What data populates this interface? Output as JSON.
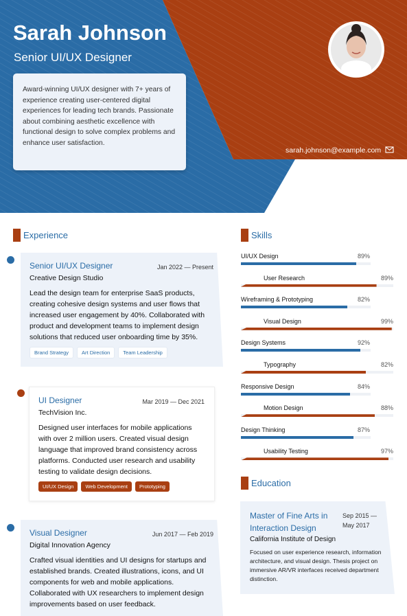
{
  "header": {
    "name": "Sarah Johnson",
    "title": "Senior UI/UX Designer",
    "summary": "Award-winning UI/UX designer with 7+ years of experience creating user-centered digital experiences for leading tech brands. Passionate about combining aesthetic excellence with functional design to solve complex problems and enhance user satisfaction.",
    "email": "sarah.johnson@example.com"
  },
  "experience": {
    "heading": "Experience",
    "items": [
      {
        "role": "Senior UI/UX Designer",
        "dates": "Jan 2022 — Present",
        "company": "Creative Design Studio",
        "description": "Lead the design team for enterprise SaaS products, creating cohesive design systems and user flows that increased user engagement by 40%. Collaborated with product and development teams to implement design solutions that reduced user onboarding time by 35%.",
        "tags": [
          "Brand Strategy",
          "Art Direction",
          "Team Leadership"
        ]
      },
      {
        "role": "UI Designer",
        "dates": "Mar 2019 — Dec 2021",
        "company": "TechVision Inc.",
        "description": "Designed user interfaces for mobile applications with over 2 million users. Created visual design language that improved brand consistency across platforms. Conducted user research and usability testing to validate design decisions.",
        "tags": [
          "UI/UX Design",
          "Web Development",
          "Prototyping"
        ]
      },
      {
        "role": "Visual Designer",
        "dates": "Jun 2017 — Feb 2019",
        "company": "Digital Innovation Agency",
        "description": "Crafted visual identities and UI designs for startups and established brands. Created illustrations, icons, and UI components for web and mobile applications. Collaborated with UX researchers to implement design improvements based on user feedback.",
        "tags": []
      }
    ]
  },
  "skills": {
    "heading": "Skills",
    "items": [
      {
        "name": "UI/UX Design",
        "value": 89,
        "label": "89%"
      },
      {
        "name": "User Research",
        "value": 89,
        "label": "89%"
      },
      {
        "name": "Wireframing & Prototyping",
        "value": 82,
        "label": "82%"
      },
      {
        "name": "Visual Design",
        "value": 99,
        "label": "99%"
      },
      {
        "name": "Design Systems",
        "value": 92,
        "label": "92%"
      },
      {
        "name": "Typography",
        "value": 82,
        "label": "82%"
      },
      {
        "name": "Responsive Design",
        "value": 84,
        "label": "84%"
      },
      {
        "name": "Motion Design",
        "value": 88,
        "label": "88%"
      },
      {
        "name": "Design Thinking",
        "value": 87,
        "label": "87%"
      },
      {
        "name": "Usability Testing",
        "value": 97,
        "label": "97%"
      }
    ]
  },
  "education": {
    "heading": "Education",
    "degree": "Master of Fine Arts in Interaction Design",
    "dates": "Sep 2015 — May 2017",
    "school": "California Institute of Design",
    "description": "Focused on user experience research, information architecture, and visual design. Thesis project on immersive AR/VR interfaces received department distinction."
  }
}
